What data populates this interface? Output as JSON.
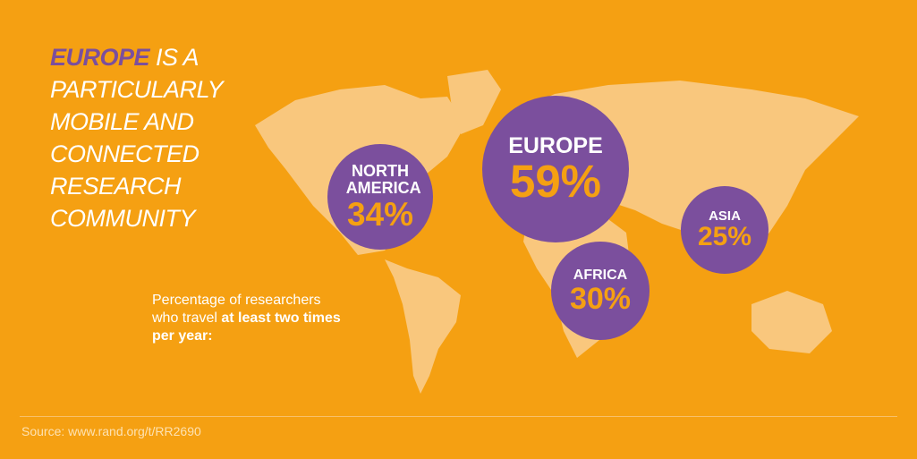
{
  "chart_data": {
    "type": "bubble",
    "title_highlight": "EUROPE",
    "title": "IS A PARTICULARLY MOBILE AND CONNECTED RESEARCH COMMUNITY",
    "subtitle": "Percentage of researchers who travel",
    "subtitle_bold": "at least two times per year:",
    "categories": [
      "NORTH AMERICA",
      "EUROPE",
      "AFRICA",
      "ASIA"
    ],
    "values": [
      34,
      59,
      30,
      25
    ],
    "value_labels": [
      "34%",
      "59%",
      "30%",
      "25%"
    ],
    "color": "#7b4f9d",
    "source": "Source: www.rand.org/t/RR2690"
  }
}
